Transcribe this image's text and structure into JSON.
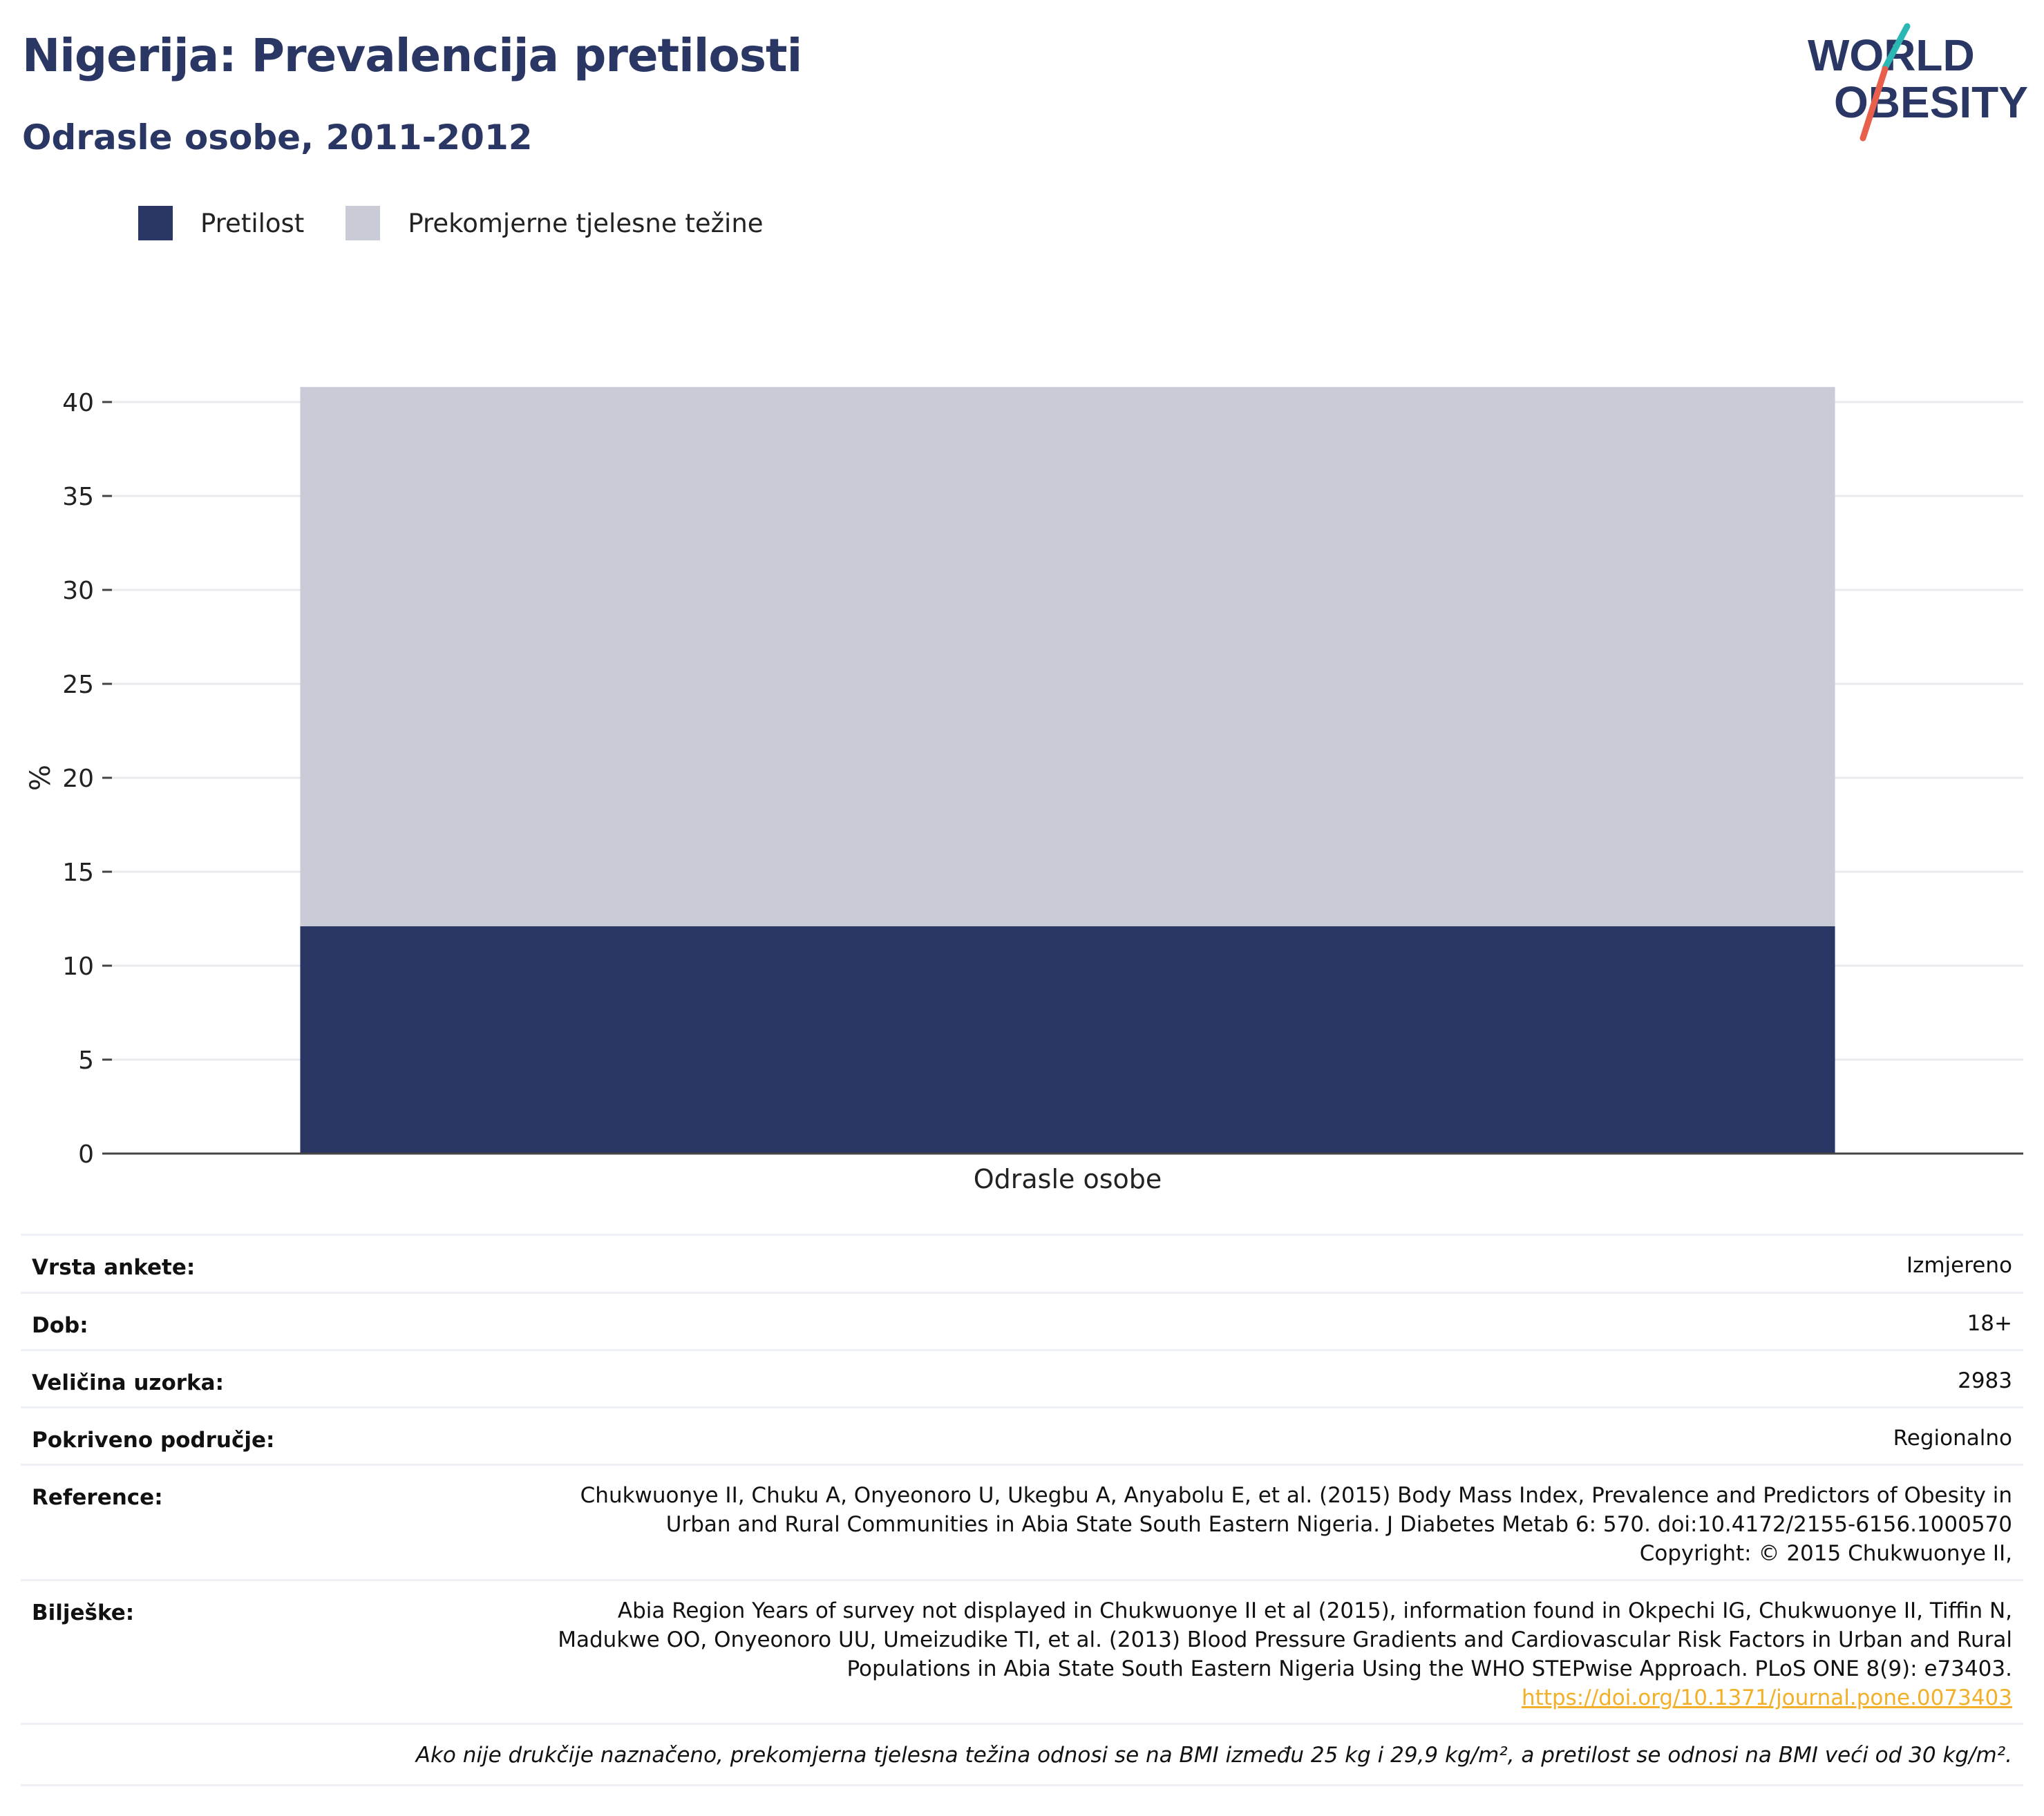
{
  "header": {
    "title": "Nigerija: Prevalencija pretilosti",
    "subtitle": "Odrasle osobe, 2011-2012"
  },
  "logo": {
    "line1": "WORLD",
    "line2": "OBESITY",
    "text_color": "#2a3764",
    "accent_teal": "#2bb7b3",
    "accent_red": "#e8604c"
  },
  "legend": [
    {
      "label": "Pretilost",
      "color": "#2a3764"
    },
    {
      "label": "Prekomjerne tjelesne težine",
      "color": "#c9ccd7"
    }
  ],
  "chart_data": {
    "type": "bar",
    "stacked": true,
    "categories": [
      "Odrasle osobe"
    ],
    "series": [
      {
        "name": "Pretilost",
        "values": [
          12.1
        ],
        "color": "#2a3764"
      },
      {
        "name": "Prekomjerne tjelesne težine",
        "values": [
          28.7
        ],
        "color": "#c9ccd7"
      }
    ],
    "ylabel": "%",
    "ylim": [
      0,
      40
    ],
    "yticks": [
      0,
      5,
      10,
      15,
      20,
      25,
      30,
      35,
      40
    ],
    "grid": true,
    "legend_position": "top-left"
  },
  "meta": {
    "survey_type": {
      "label": "Vrsta ankete:",
      "value": "Izmjereno"
    },
    "age": {
      "label": "Dob:",
      "value": "18+"
    },
    "sample_size": {
      "label": "Veličina uzorka:",
      "value": "2983"
    },
    "coverage": {
      "label": "Pokriveno područje:",
      "value": "Regionalno"
    },
    "references": {
      "label": "Reference:",
      "lines": [
        "Chukwuonye II, Chuku A, Onyeonoro U, Ukegbu A, Anyabolu E, et al. (2015) Body Mass Index, Prevalence and Predictors of Obesity in",
        "Urban and Rural Communities in Abia State South Eastern Nigeria. J Diabetes Metab 6: 570. doi:10.4172/2155-6156.1000570",
        "Copyright: © 2015 Chukwuonye II,"
      ]
    },
    "notes": {
      "label": "Bilješke:",
      "lines": [
        "Abia Region Years of survey not displayed in Chukwuonye II et al (2015), information found in Okpechi IG, Chukwuonye II, Tiffin N,",
        "Madukwe OO, Onyeonoro UU, Umeizudike TI, et al. (2013) Blood Pressure Gradients and Cardiovascular Risk Factors in Urban and Rural",
        "Populations in Abia State South Eastern Nigeria Using the WHO STEPwise Approach. PLoS ONE 8(9): e73403."
      ],
      "link": "https://doi.org/10.1371/journal.pone.0073403"
    },
    "footnote": "Ako nije drukčije naznačeno, prekomjerna tjelesna težina odnosi se na BMI između 25 kg i 29,9 kg/m², a pretilost se odnosi na BMI veći od 30 kg/m²."
  }
}
